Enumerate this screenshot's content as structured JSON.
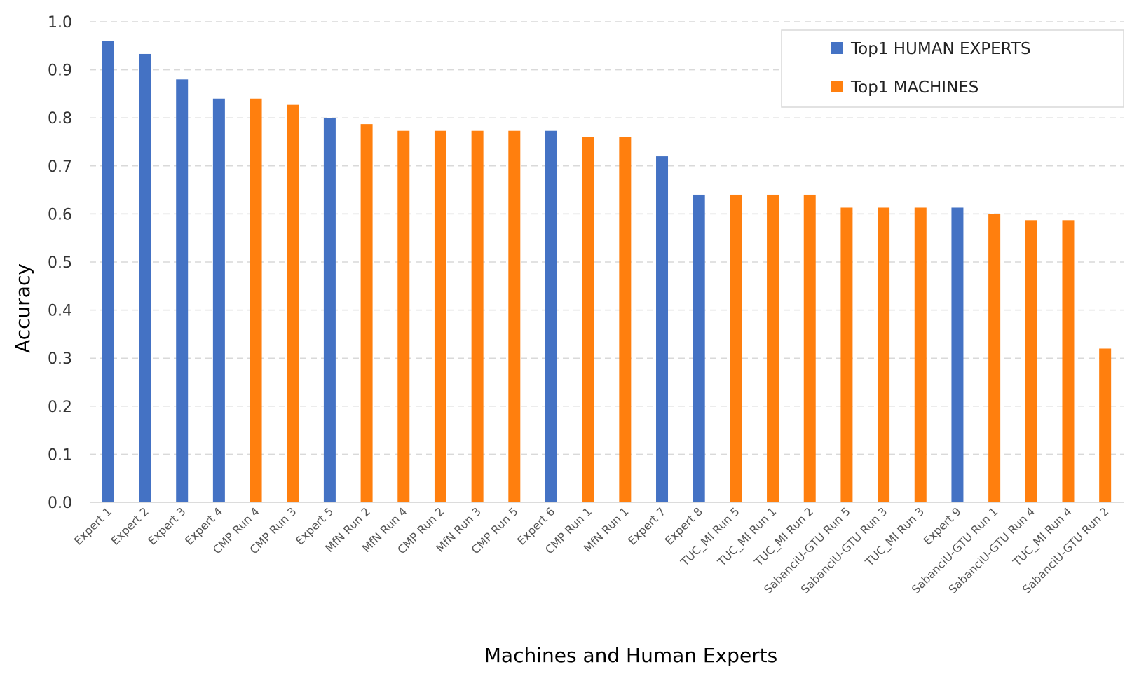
{
  "chart_data": {
    "type": "bar",
    "title": "",
    "xlabel": "Machines and Human Experts",
    "ylabel": "Accuracy",
    "ylim": [
      0,
      1
    ],
    "yticks": [
      "0.0",
      "0.1",
      "0.2",
      "0.3",
      "0.4",
      "0.5",
      "0.6",
      "0.7",
      "0.8",
      "0.9",
      "1.0"
    ],
    "grid": true,
    "legend_position": "top-right",
    "series": [
      {
        "name": "Top1 HUMAN EXPERTS",
        "color": "#4472c4"
      },
      {
        "name": "Top1 MACHINES",
        "color": "#ff7f0e"
      }
    ],
    "categories": [
      "Expert 1",
      "Expert 2",
      "Expert 3",
      "Expert 4",
      "CMP Run 4",
      "CMP Run 3",
      "Expert 5",
      "MfN Run 2",
      "MfN Run 4",
      "CMP Run 2",
      "MfN Run 3",
      "CMP Run 5",
      "Expert 6",
      "CMP Run 1",
      "MfN Run 1",
      "Expert 7",
      "Expert 8",
      "TUC_MI Run 5",
      "TUC_MI Run 1",
      "TUC_MI Run 2",
      "SabanciU-GTU Run 5",
      "SabanciU-GTU Run 3",
      "TUC_MI Run 3",
      "Expert 9",
      "SabanciU-GTU Run 1",
      "SabanciU-GTU Run 4",
      "TUC_MI Run 4",
      "SabanciU-GTU Run 2"
    ],
    "values": [
      0.96,
      0.933,
      0.88,
      0.84,
      0.84,
      0.827,
      0.8,
      0.787,
      0.773,
      0.773,
      0.773,
      0.773,
      0.773,
      0.76,
      0.76,
      0.72,
      0.64,
      0.64,
      0.64,
      0.64,
      0.613,
      0.613,
      0.613,
      0.613,
      0.6,
      0.587,
      0.587,
      0.32
    ],
    "bar_series": [
      "Top1 HUMAN EXPERTS",
      "Top1 HUMAN EXPERTS",
      "Top1 HUMAN EXPERTS",
      "Top1 HUMAN EXPERTS",
      "Top1 MACHINES",
      "Top1 MACHINES",
      "Top1 HUMAN EXPERTS",
      "Top1 MACHINES",
      "Top1 MACHINES",
      "Top1 MACHINES",
      "Top1 MACHINES",
      "Top1 MACHINES",
      "Top1 HUMAN EXPERTS",
      "Top1 MACHINES",
      "Top1 MACHINES",
      "Top1 HUMAN EXPERTS",
      "Top1 HUMAN EXPERTS",
      "Top1 MACHINES",
      "Top1 MACHINES",
      "Top1 MACHINES",
      "Top1 MACHINES",
      "Top1 MACHINES",
      "Top1 MACHINES",
      "Top1 HUMAN EXPERTS",
      "Top1 MACHINES",
      "Top1 MACHINES",
      "Top1 MACHINES",
      "Top1 MACHINES"
    ]
  }
}
